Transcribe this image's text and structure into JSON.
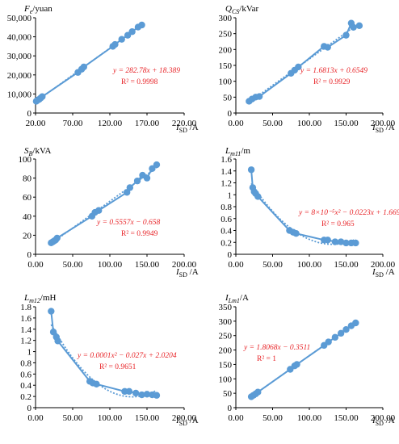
{
  "colors": {
    "series": "#5b9bd5",
    "equation": "#e8262a",
    "axis": "#000000"
  },
  "chart_data": [
    {
      "type": "scatter",
      "ylabel": "Fe/yuan",
      "xlabel": "ISD /A",
      "xlim": [
        20,
        220
      ],
      "ylim": [
        0,
        50000
      ],
      "xticks": [
        "20.00",
        "70.00",
        "120.00",
        "170.00",
        "220.00"
      ],
      "yticks": [
        "0",
        "10,000",
        "20,000",
        "30,000",
        "40,000",
        "50,000"
      ],
      "x": [
        21,
        23,
        25,
        27,
        29,
        77,
        82,
        85,
        124,
        127,
        136,
        144,
        150,
        158,
        163
      ],
      "y": [
        6200,
        6800,
        7200,
        7900,
        8600,
        21300,
        23000,
        24200,
        35000,
        36000,
        38700,
        40800,
        42700,
        45100,
        46200
      ],
      "trendline": "linear",
      "equation": "y = 282.78x + 18.389",
      "r2": "R² = 0.9998"
    },
    {
      "type": "scatter",
      "ylabel": "QCS/kVar",
      "xlabel": "ISD /A",
      "xlim": [
        0,
        200
      ],
      "ylim": [
        0,
        300
      ],
      "xticks": [
        "0.00",
        "50.00",
        "100.00",
        "150.00",
        "200.00"
      ],
      "yticks": [
        "0",
        "50",
        "100",
        "150",
        "200",
        "250",
        "300"
      ],
      "x": [
        18,
        22,
        27,
        32,
        75,
        80,
        85,
        120,
        125,
        150,
        157,
        160,
        168
      ],
      "y": [
        37,
        44,
        50,
        52,
        125,
        135,
        145,
        210,
        207,
        245,
        283,
        270,
        275
      ],
      "trendline": "linear",
      "equation": "y = 1.6813x + 0.6549",
      "r2": "R² = 0.9929"
    },
    {
      "type": "scatter",
      "ylabel": "SB/kVA",
      "xlabel": "ISD /A",
      "xlim": [
        0,
        200
      ],
      "ylim": [
        0,
        100
      ],
      "xticks": [
        "0.00",
        "50.00",
        "100.00",
        "150.00",
        "200.00"
      ],
      "yticks": [
        "0",
        "20",
        "40",
        "60",
        "80",
        "100"
      ],
      "x": [
        21,
        23,
        25,
        27,
        29,
        76,
        80,
        85,
        123,
        127,
        137,
        144,
        150,
        157,
        163
      ],
      "y": [
        12,
        13,
        14,
        15,
        17,
        40,
        44,
        46,
        65,
        70,
        77,
        83,
        80,
        90,
        94
      ],
      "trendline": "linear",
      "equation": "y = 0.5557x − 0.658",
      "r2": "R² = 0.9949"
    },
    {
      "type": "scatter",
      "ylabel": "Lm11/m",
      "xlabel": "ISD /A",
      "xlim": [
        0,
        200
      ],
      "ylim": [
        0,
        1.6
      ],
      "xticks": [
        "0.00",
        "50.00",
        "100.00",
        "150.00",
        "200.00"
      ],
      "yticks": [
        "0",
        "0.2",
        "0.4",
        "0.6",
        "0.8",
        "1",
        "1.2",
        "1.4",
        "1.6"
      ],
      "x": [
        21,
        23,
        25,
        27,
        30,
        73,
        78,
        82,
        120,
        125,
        135,
        143,
        150,
        157,
        163
      ],
      "y": [
        1.42,
        1.12,
        1.05,
        1.02,
        0.97,
        0.4,
        0.37,
        0.35,
        0.24,
        0.24,
        0.21,
        0.21,
        0.19,
        0.19,
        0.19
      ],
      "trendline": "polynomial",
      "equation": "y = 8×10⁻⁵x² − 0.0223x + 1.6695",
      "r2": "R² = 0.965"
    },
    {
      "type": "scatter",
      "ylabel": "Lm12/mH",
      "xlabel": "ISD /A",
      "xlim": [
        0,
        200
      ],
      "ylim": [
        0,
        1.8
      ],
      "xticks": [
        "0.00",
        "50.00",
        "100.00",
        "150.00",
        "200.00"
      ],
      "yticks": [
        "0",
        "0.2",
        "0.4",
        "0.6",
        "0.8",
        "1",
        "1.2",
        "1.4",
        "1.6",
        "1.8"
      ],
      "x": [
        21,
        24,
        28,
        30,
        73,
        77,
        82,
        120,
        126,
        135,
        143,
        150,
        157,
        163
      ],
      "y": [
        1.72,
        1.35,
        1.26,
        1.19,
        0.47,
        0.44,
        0.42,
        0.29,
        0.29,
        0.26,
        0.23,
        0.24,
        0.23,
        0.22
      ],
      "trendline": "polynomial",
      "equation": "y = 0.0001x² − 0.027x + 2.0204",
      "r2": "R² = 0.9651"
    },
    {
      "type": "scatter",
      "ylabel": "ILm1/A",
      "xlabel": "ISD /A",
      "xlim": [
        0,
        200
      ],
      "ylim": [
        0,
        350
      ],
      "xticks": [
        "0.00",
        "50.00",
        "100.00",
        "150.00",
        "200.00"
      ],
      "yticks": [
        "0",
        "50",
        "100",
        "150",
        "200",
        "250",
        "300",
        "350"
      ],
      "x": [
        21,
        24,
        27,
        30,
        74,
        80,
        83,
        120,
        126,
        135,
        143,
        150,
        157,
        163
      ],
      "y": [
        38,
        43,
        48,
        54,
        133,
        145,
        150,
        216,
        228,
        244,
        258,
        271,
        284,
        294
      ],
      "trendline": "linear",
      "equation": "y = 1.8068x − 0.3511",
      "r2": "R² = 1"
    }
  ]
}
